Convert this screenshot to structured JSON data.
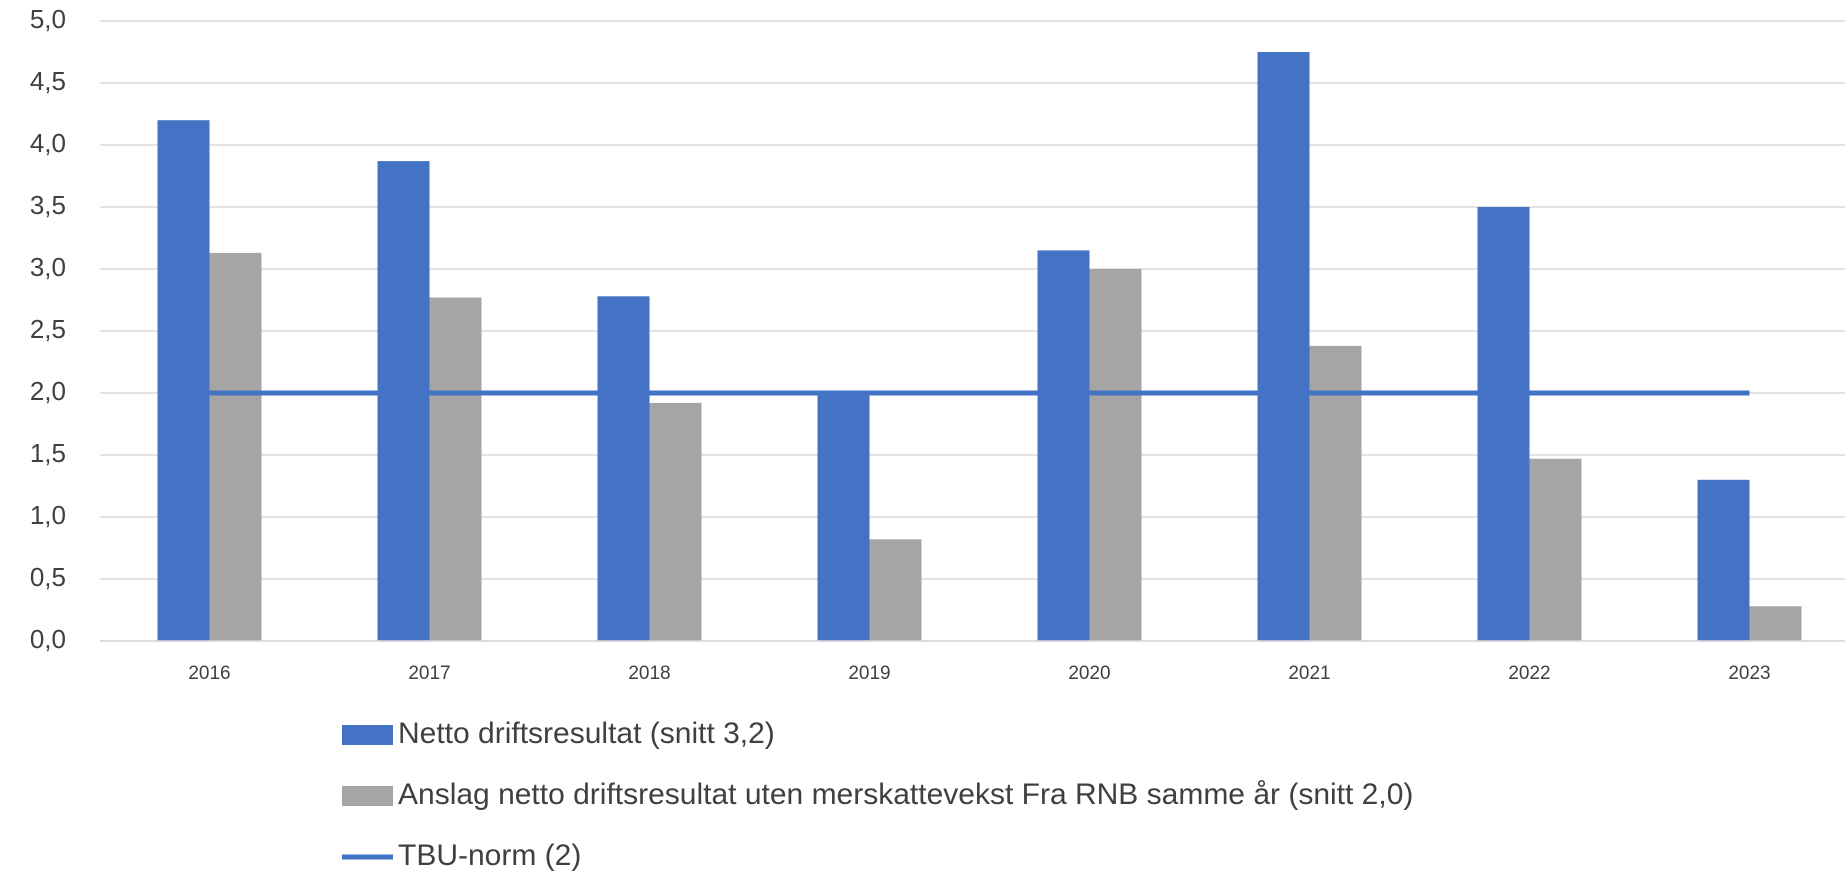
{
  "chart_data": {
    "type": "bar",
    "categories": [
      "2016",
      "2017",
      "2018",
      "2019",
      "2020",
      "2021",
      "2022",
      "2023"
    ],
    "series": [
      {
        "name": "Netto driftsresultat (snitt 3,2)",
        "color": "#4472c4",
        "values": [
          4.2,
          3.87,
          2.78,
          2.0,
          3.15,
          4.75,
          3.5,
          1.3
        ]
      },
      {
        "name": "Anslag netto driftsresultat uten merskattevekst Fra RNB samme år (snitt 2,0)",
        "color": "#a5a5a5",
        "values": [
          3.13,
          2.77,
          1.92,
          0.82,
          3.0,
          2.38,
          1.47,
          0.28
        ]
      },
      {
        "name": "TBU-norm (2)",
        "color": "#4472c4",
        "type": "line",
        "values": [
          2,
          2,
          2,
          2,
          2,
          2,
          2,
          2
        ]
      }
    ],
    "ylim": [
      0,
      5
    ],
    "yticks": [
      {
        "value": 0,
        "label": "0,0"
      },
      {
        "value": 0.5,
        "label": "0,5"
      },
      {
        "value": 1,
        "label": "1,0"
      },
      {
        "value": 1.5,
        "label": "1,5"
      },
      {
        "value": 2,
        "label": "2,0"
      },
      {
        "value": 2.5,
        "label": "2,5"
      },
      {
        "value": 3,
        "label": "3,0"
      },
      {
        "value": 3.5,
        "label": "3,5"
      },
      {
        "value": 4,
        "label": "4,0"
      },
      {
        "value": 4.5,
        "label": "4,5"
      },
      {
        "value": 5,
        "label": "5,0"
      }
    ],
    "grid": true,
    "legend": "bottom"
  }
}
